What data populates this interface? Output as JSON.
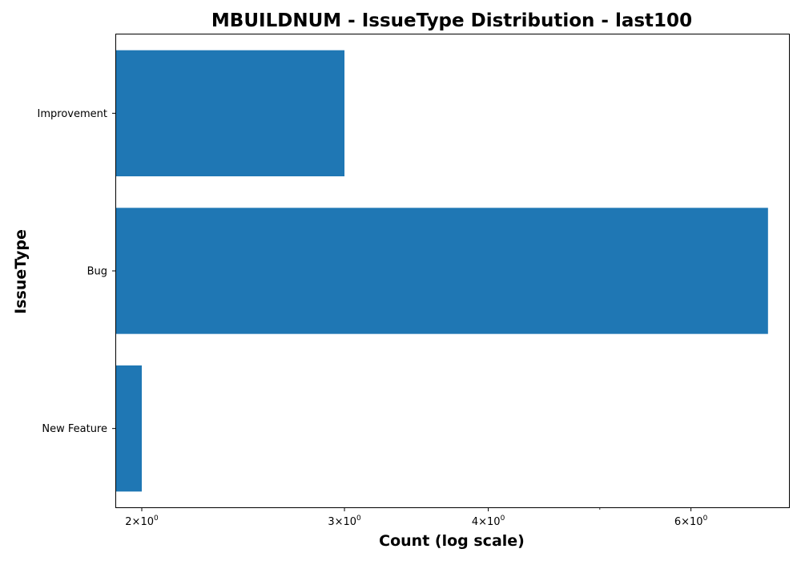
{
  "chart_data": {
    "type": "bar",
    "orientation": "horizontal",
    "title": "MBUILDNUM - IssueType Distribution - last100",
    "xlabel": "Count (log scale)",
    "ylabel": "IssueType",
    "x_scale": "log",
    "xlim": [
      1.9,
      7.3
    ],
    "categories": [
      "New Feature",
      "Bug",
      "Improvement"
    ],
    "values": [
      2,
      7,
      3
    ],
    "x_ticks": [
      {
        "value": 2,
        "base": "2",
        "exp": "0"
      },
      {
        "value": 3,
        "base": "3",
        "exp": "0"
      },
      {
        "value": 4,
        "base": "4",
        "exp": "0"
      },
      {
        "value": 6,
        "base": "6",
        "exp": "0"
      }
    ],
    "x_minor_ticks": [
      5
    ],
    "bar_color": "#1f77b4",
    "grid": false,
    "legend": "none"
  }
}
